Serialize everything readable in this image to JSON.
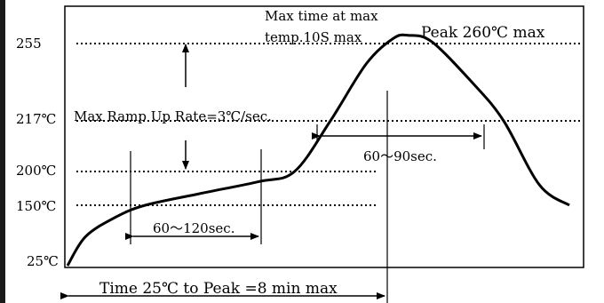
{
  "chart_data": {
    "type": "line",
    "title": "",
    "y_tick_labels": [
      "255",
      "217℃",
      "200℃",
      "150℃",
      "25℃"
    ],
    "y_ticks": [
      255,
      217,
      200,
      150,
      25
    ],
    "ylim": [
      25,
      262
    ],
    "grid_lines": [
      255,
      217,
      200,
      150
    ],
    "grid": "dotted",
    "series": [
      {
        "values_note": "",
        "points": [
          [
            0,
            25
          ],
          [
            0.3,
            85
          ],
          [
            0.8,
            125
          ],
          [
            1.3,
            150
          ],
          [
            2.2,
            167
          ],
          [
            3.2,
            185
          ],
          [
            3.8,
            200
          ],
          [
            4.4,
            217
          ],
          [
            5.0,
            245
          ],
          [
            5.45,
            258
          ],
          [
            5.7,
            260
          ],
          [
            6.1,
            256
          ],
          [
            6.8,
            235
          ],
          [
            7.3,
            217
          ],
          [
            7.9,
            180
          ],
          [
            8.4,
            150
          ]
        ]
      }
    ],
    "annotations": {
      "max_time": [
        "Max time at max",
        "temp.10S max"
      ],
      "peak": "Peak 260℃ max",
      "ramp": "Max Ramp Up Rate=3℃/sec.",
      "soak": "60〜120sec.",
      "reflow": "60〜90sec.",
      "total": "Time 25℃ to Peak =8 min max"
    }
  }
}
